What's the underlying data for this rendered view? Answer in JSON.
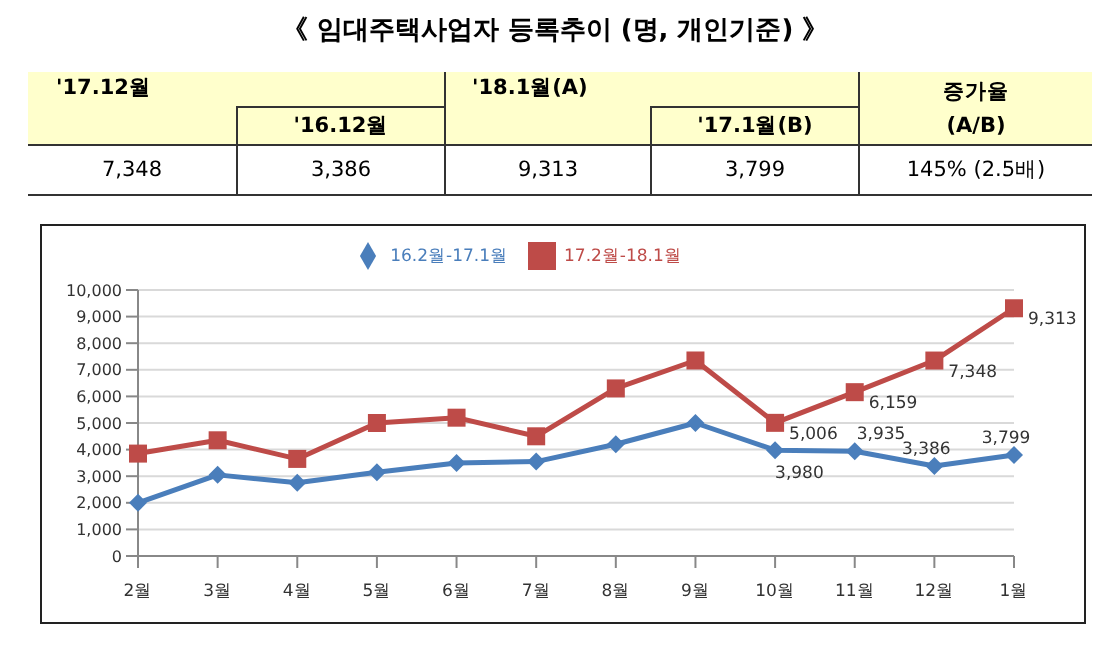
{
  "chart_data": {
    "type": "line",
    "title": "《 임대주택사업자 등록추이 (명, 개인기준) 》",
    "annotations": [
      "'17.12월",
      "'16.12월",
      "'18.1월(A)",
      "'17.1월(B)",
      "증가율 (A/B)",
      "7,348",
      "3,386",
      "9,313",
      "3,799",
      "145% (2.5배)"
    ],
    "categories": [
      "2월",
      "3월",
      "4월",
      "5월",
      "6월",
      "7월",
      "8월",
      "9월",
      "10월",
      "11월",
      "12월",
      "1월"
    ],
    "series": [
      {
        "name": "16.2월-17.1월",
        "color": "#4a7ebb",
        "marker": "diamond",
        "values": [
          2000,
          3050,
          2750,
          3150,
          3500,
          3550,
          4200,
          5000,
          3980,
          3935,
          3386,
          3799
        ],
        "value_labels": [
          null,
          null,
          null,
          null,
          null,
          null,
          null,
          null,
          "3,980",
          "3,935",
          "3,386",
          "3,799"
        ]
      },
      {
        "name": "17.2월-18.1월",
        "color": "#be4b48",
        "marker": "square",
        "values": [
          3850,
          4350,
          3650,
          5000,
          5200,
          4500,
          6300,
          7350,
          5006,
          6159,
          7348,
          9313
        ],
        "value_labels": [
          null,
          null,
          null,
          null,
          null,
          null,
          null,
          null,
          "5,006",
          "6,159",
          "7,348",
          "9,313"
        ]
      }
    ],
    "ylim": [
      0,
      10000
    ],
    "yticks": [
      0,
      {
        "value": 1000,
        "label": "1,000"
      },
      {
        "value": 2000,
        "label": "2,000"
      },
      {
        "value": 3000,
        "label": "3,000"
      },
      {
        "value": 4000,
        "label": "4,000"
      },
      {
        "value": 5000,
        "label": "5,000"
      },
      {
        "value": 6000,
        "label": "6,000"
      },
      {
        "value": 7000,
        "label": "7,000"
      },
      {
        "value": 8000,
        "label": "8,000"
      },
      {
        "value": 9000,
        "label": "9,000"
      },
      {
        "value": 10000,
        "label": "10,000"
      }
    ],
    "grid": "y",
    "legend": "top"
  }
}
